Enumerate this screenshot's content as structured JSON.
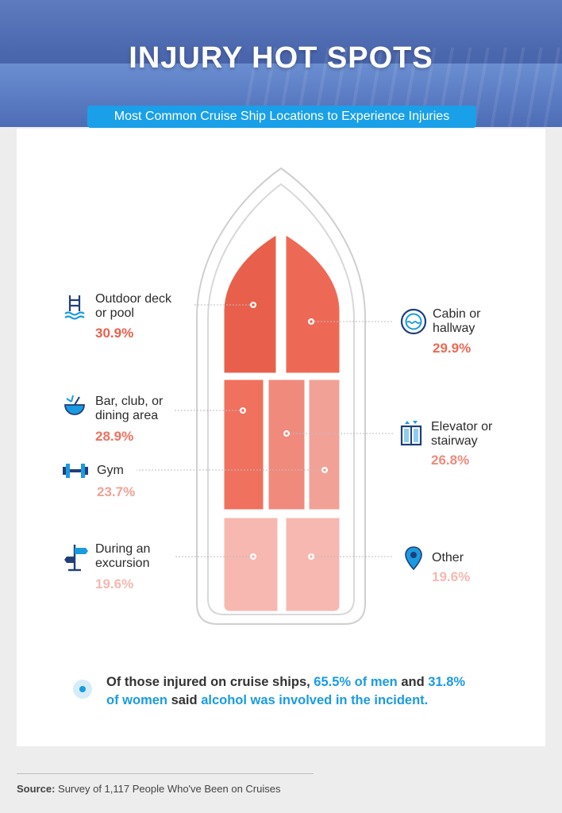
{
  "header": {
    "title": "INJURY HOT SPOTS",
    "subtitle": "Most Common Cruise Ship Locations to Experience Injuries"
  },
  "chart_data": {
    "type": "bar",
    "categories": [
      "Outdoor deck or pool",
      "Cabin or hallway",
      "Bar, club, or dining area",
      "Elevator or stairway",
      "Gym",
      "During an excursion",
      "Other"
    ],
    "values": [
      30.9,
      29.9,
      28.9,
      26.8,
      23.7,
      19.6,
      19.6
    ],
    "unit": "%"
  },
  "items": [
    {
      "line1": "Outdoor deck",
      "line2": "or pool",
      "pct": "30.9%",
      "color": "#e8604c",
      "icon": "pool-ladder-icon"
    },
    {
      "line1": "Cabin or",
      "line2": "hallway",
      "pct": "29.9%",
      "color": "#ee6955",
      "icon": "porthole-icon"
    },
    {
      "line1": "Bar, club, or",
      "line2": "dining area",
      "pct": "28.9%",
      "color": "#f0715e",
      "icon": "coconut-drink-icon"
    },
    {
      "line1": "Elevator or",
      "line2": "stairway",
      "pct": "26.8%",
      "color": "#f08a7c",
      "icon": "elevator-icon"
    },
    {
      "line1": "Gym",
      "line2": "",
      "pct": "23.7%",
      "color": "#f2a197",
      "icon": "dumbbell-icon"
    },
    {
      "line1": "During an",
      "line2": "excursion",
      "pct": "19.6%",
      "color": "#f6b8b0",
      "icon": "signpost-icon"
    },
    {
      "line1": "Other",
      "line2": "",
      "pct": "19.6%",
      "color": "#f6b8b0",
      "icon": "location-pin-icon"
    }
  ],
  "note": {
    "p1": "Of those injured on cruise ships, ",
    "p2": "65.5% of men",
    "p3": " and ",
    "p4": "31.8%",
    "p5": "of women",
    "p6": " said ",
    "p7": "alcohol was involved in the incident."
  },
  "source": {
    "label": "Source:",
    "text": " Survey of 1,117 People Who've Been on Cruises"
  },
  "colors": {
    "accent": "#1a9be0",
    "hero": "#4b67ad",
    "outline": "#cfcfcf"
  }
}
